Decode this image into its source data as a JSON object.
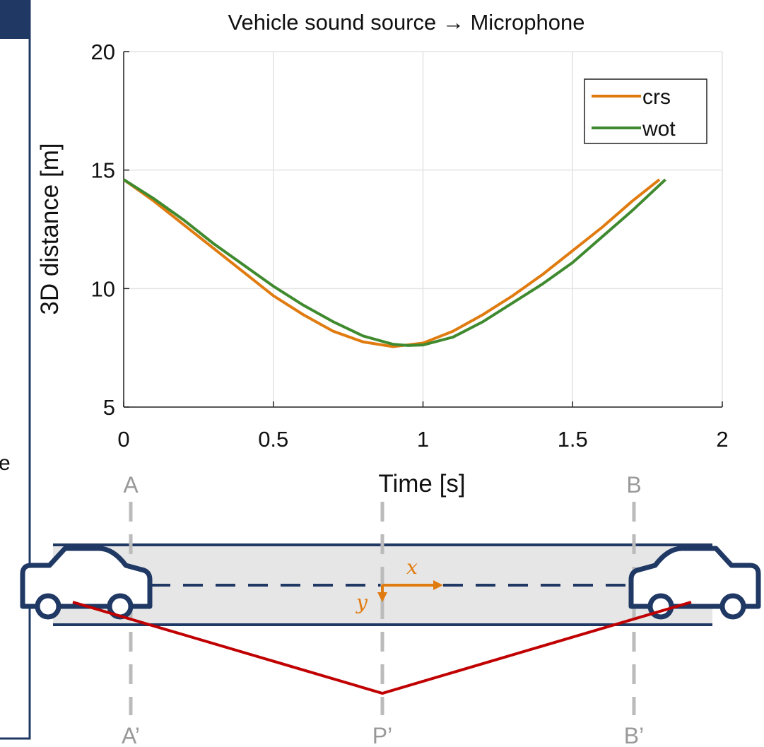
{
  "chart_data": {
    "type": "line",
    "title": "Vehicle sound source → Microphone",
    "xlabel": "Time [s]",
    "ylabel": "3D distance [m]",
    "xlim": [
      0,
      2
    ],
    "xticks": [
      0,
      0.5,
      1,
      1.5,
      2
    ],
    "ylim": [
      5,
      20
    ],
    "yticks": [
      5,
      10,
      15,
      20
    ],
    "grid": true,
    "legend": "top-right",
    "series": [
      {
        "name": "crs",
        "color": "#e07b10",
        "x": [
          0,
          0.1,
          0.2,
          0.3,
          0.4,
          0.5,
          0.6,
          0.7,
          0.8,
          0.9,
          1.0,
          1.1,
          1.2,
          1.3,
          1.4,
          1.5,
          1.6,
          1.7,
          1.79
        ],
        "values": [
          14.6,
          13.7,
          12.7,
          11.7,
          10.7,
          9.7,
          8.9,
          8.2,
          7.75,
          7.55,
          7.7,
          8.2,
          8.9,
          9.7,
          10.6,
          11.6,
          12.6,
          13.7,
          14.6
        ]
      },
      {
        "name": "wot",
        "color": "#3f8a2f",
        "x": [
          0,
          0.1,
          0.2,
          0.3,
          0.4,
          0.5,
          0.6,
          0.7,
          0.8,
          0.9,
          0.95,
          1.0,
          1.1,
          1.2,
          1.3,
          1.4,
          1.5,
          1.6,
          1.7,
          1.81
        ],
        "values": [
          14.6,
          13.8,
          12.9,
          11.9,
          11.0,
          10.1,
          9.3,
          8.6,
          8.0,
          7.65,
          7.6,
          7.62,
          7.95,
          8.6,
          9.4,
          10.2,
          11.1,
          12.2,
          13.3,
          14.6
        ]
      }
    ]
  },
  "diagram": {
    "points": [
      "A",
      "B",
      "A’",
      "P’",
      "B’"
    ],
    "axis_x": "x",
    "axis_y": "y",
    "cut_text": "e"
  }
}
